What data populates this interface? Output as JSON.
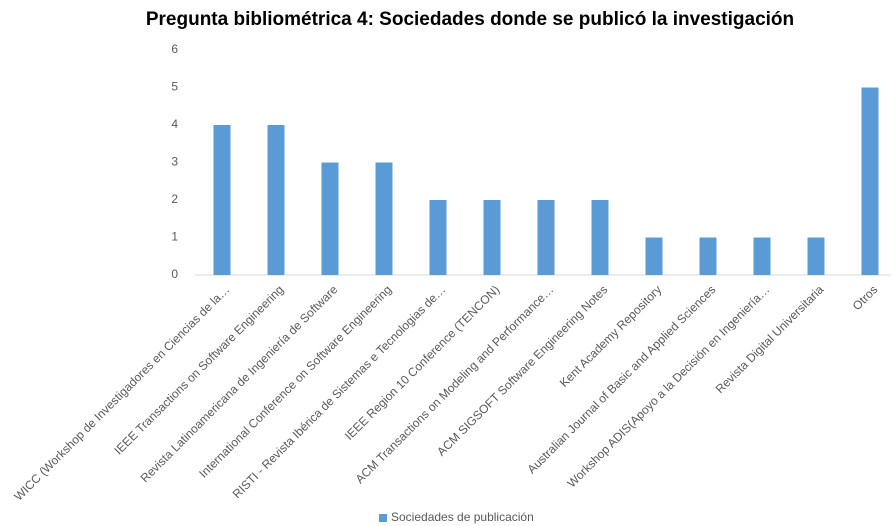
{
  "chart_data": {
    "type": "bar",
    "title": "Pregunta bibliométrica 4: Sociedades donde se publicó la investigación",
    "categories": [
      "WICC (Workshop de Investigadores en Ciencias de la…",
      "IEEE Transactions on Software Engineering",
      "Revista Latinoamericana de Ingeniería de Software",
      "International Conference on Software Engineering",
      "RISTI - Revista Ibérica de Sistemas e Tecnologias de…",
      "IEEE Region 10 Conference (TENCON)",
      "ACM Transactions on Modeling and Performance…",
      "ACM SIGSOFT Software Engineering Notes",
      "Kent Academy Repository",
      "Australian Journal of Basic and Applied Sciences",
      "Workshop ADIS(Apoyo a la Decisión en Ingeniería…",
      "Revista Digital Universitaria",
      "Otros"
    ],
    "series": [
      {
        "name": "Sociedades de publicación",
        "color": "#5b9bd5",
        "values": [
          4,
          4,
          3,
          3,
          2,
          2,
          2,
          2,
          1,
          1,
          1,
          1,
          5
        ]
      }
    ],
    "ylim": [
      0,
      6
    ],
    "yticks": [
      0,
      1,
      2,
      3,
      4,
      5,
      6
    ],
    "grid": false,
    "legend": "bottom"
  }
}
